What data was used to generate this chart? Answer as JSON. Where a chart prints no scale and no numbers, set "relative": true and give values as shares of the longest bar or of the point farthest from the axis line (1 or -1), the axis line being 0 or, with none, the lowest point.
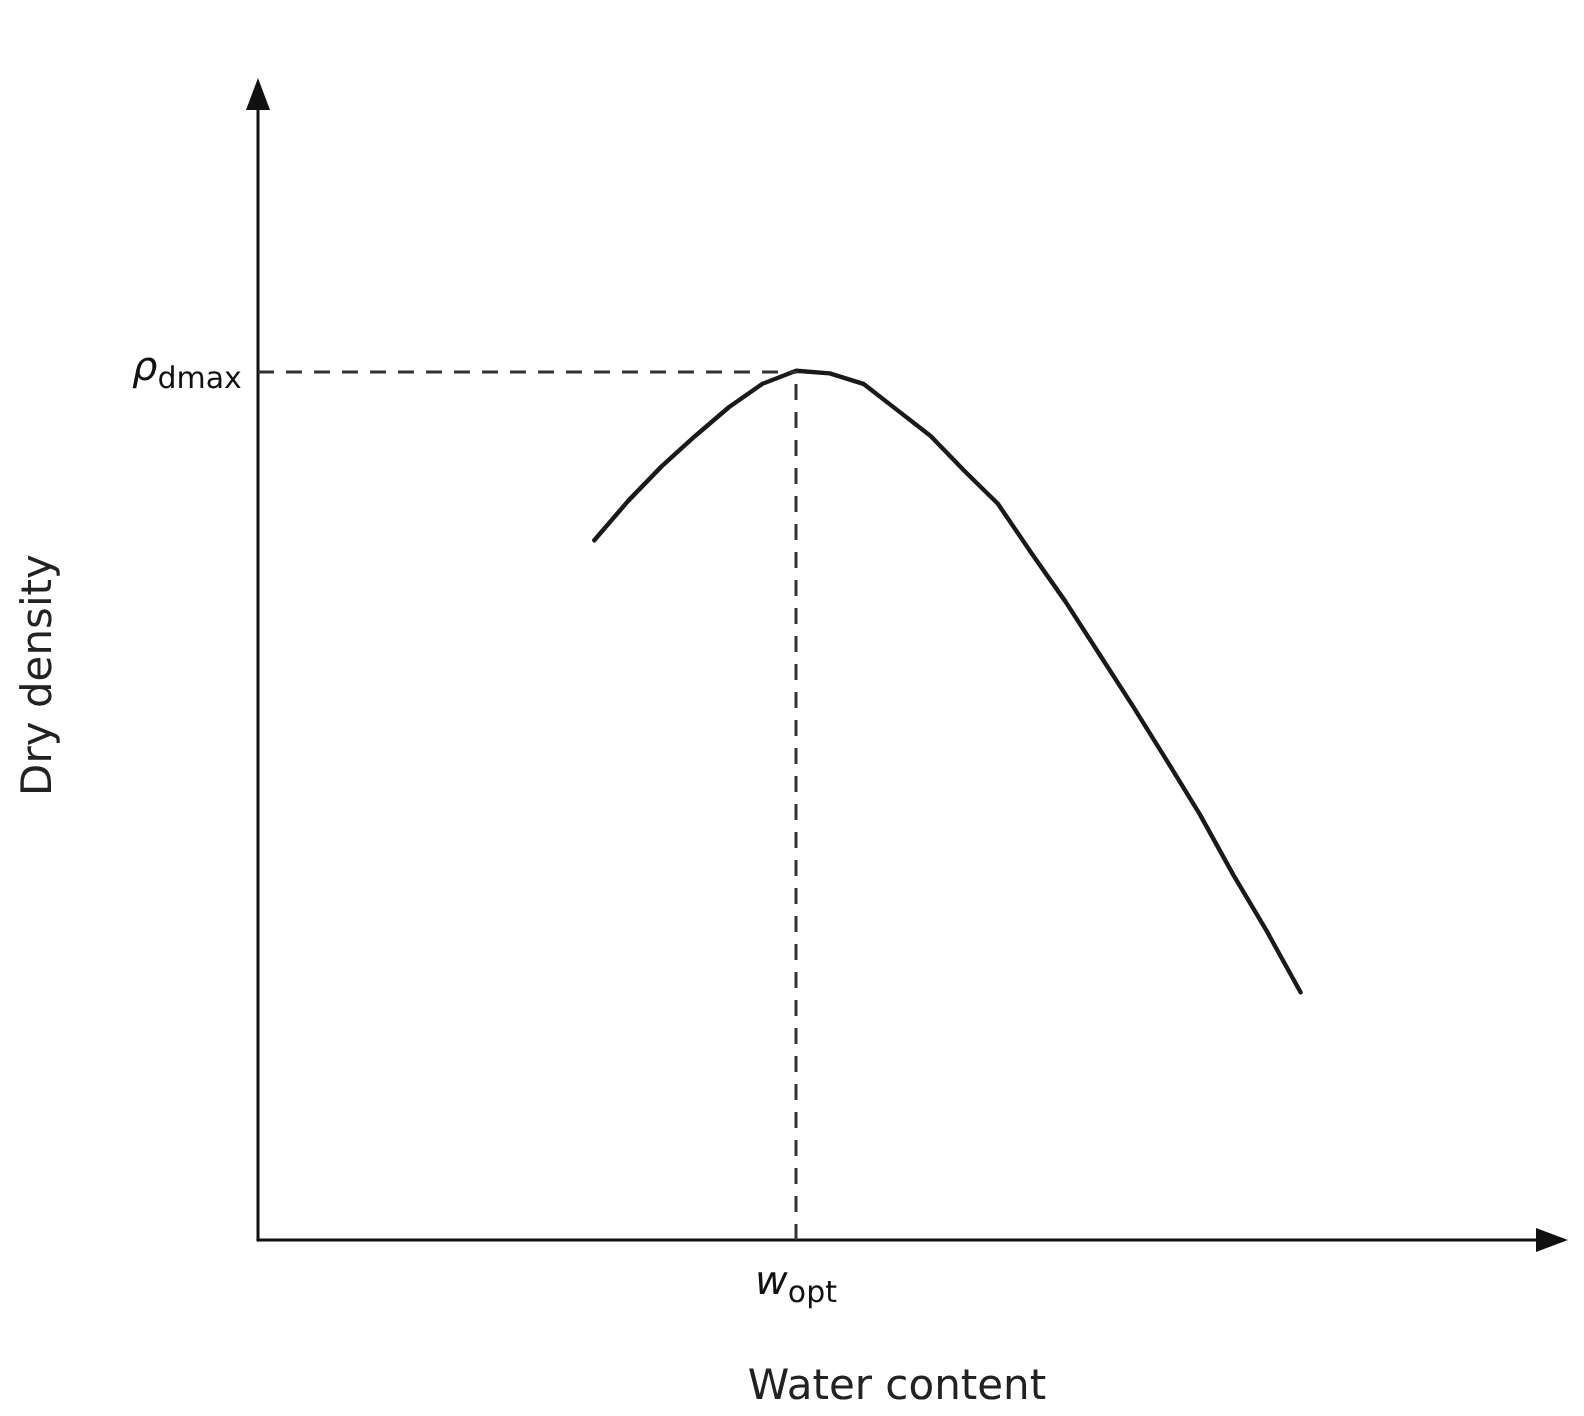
{
  "chart_data": {
    "type": "line",
    "xlabel": "Water content",
    "ylabel": "Dry density",
    "relative": true,
    "grid": false,
    "marker": "none",
    "line_style": "solid",
    "ylim": [
      0,
      1.3
    ],
    "categories": [
      null,
      null,
      null,
      null,
      null,
      null,
      null,
      null,
      null,
      null,
      null,
      null,
      null,
      null,
      null,
      null,
      null,
      null,
      null,
      null,
      null,
      null,
      null,
      null,
      null,
      null,
      null,
      null,
      null,
      null,
      null,
      null,
      null,
      null,
      null,
      null,
      null,
      null,
      null
    ],
    "series": [
      {
        "color": "#1a1a1a",
        "values": [
          null,
          null,
          null,
          null,
          null,
          null,
          null,
          null,
          null,
          null,
          0.805,
          0.85,
          0.89,
          0.925,
          0.958,
          0.985,
          1,
          0.997,
          0.985,
          0.955,
          0.925,
          0.885,
          0.847,
          0.79,
          0.735,
          0.675,
          0.615,
          0.553,
          0.49,
          0.42,
          0.355,
          0.285,
          null,
          null,
          null,
          null,
          null,
          null,
          null
        ]
      }
    ],
    "ref_lines": [
      {
        "axis": "y",
        "value": 1,
        "label": "ρ$_{dmax}$",
        "color": "#333333",
        "line_style": "dashed"
      }
    ],
    "annotations": [
      "w$_{opt}$"
    ]
  }
}
